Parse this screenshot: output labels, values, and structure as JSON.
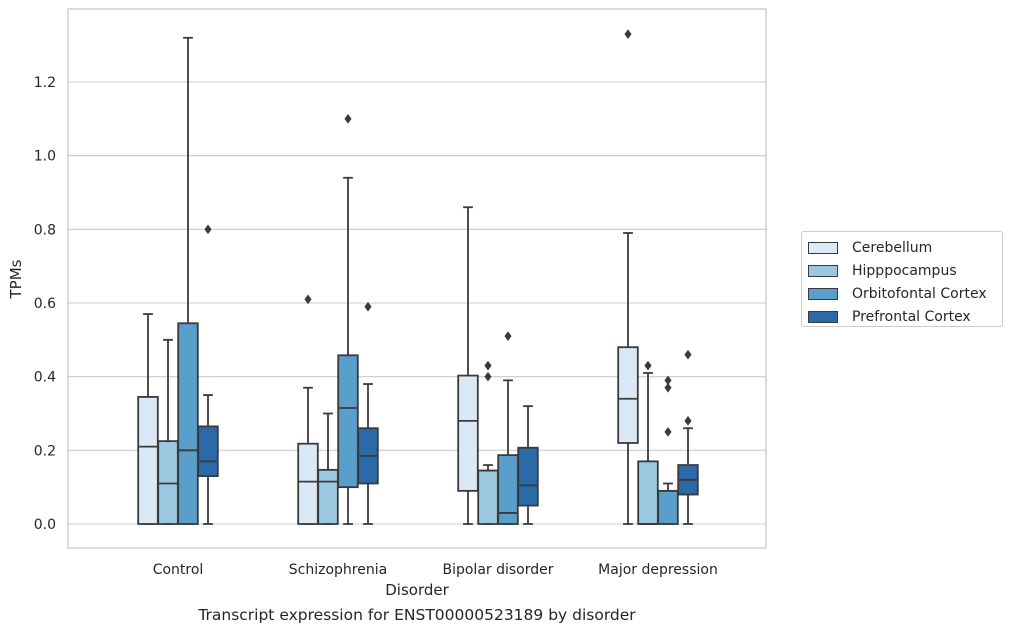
{
  "chart_data": {
    "type": "box",
    "caption": "Transcript expression for ENST00000523189 by disorder",
    "xlabel": "Disorder",
    "ylabel": "TPMs",
    "ylim": [
      -0.065,
      1.4
    ],
    "yticks": [
      0.0,
      0.2,
      0.4,
      0.6,
      0.8,
      1.0,
      1.2
    ],
    "ytick_labels": [
      "0.0",
      "0.2",
      "0.4",
      "0.6",
      "0.8",
      "1.0",
      "1.2"
    ],
    "grid": "horizontal",
    "legend_position": "right",
    "categories": [
      "Control",
      "Schizophrenia",
      "Bipolar disorder",
      "Major depression"
    ],
    "series": [
      {
        "name": "Cerebellum",
        "color": "#dbe9f6",
        "boxes": [
          {
            "whislo": 0.0,
            "q1": 0.0,
            "med": 0.21,
            "q3": 0.345,
            "whishi": 0.57,
            "fliers": []
          },
          {
            "whislo": 0.0,
            "q1": 0.0,
            "med": 0.115,
            "q3": 0.218,
            "whishi": 0.37,
            "fliers": [
              0.61
            ]
          },
          {
            "whislo": 0.0,
            "q1": 0.09,
            "med": 0.28,
            "q3": 0.403,
            "whishi": 0.86,
            "fliers": []
          },
          {
            "whislo": 0.0,
            "q1": 0.22,
            "med": 0.34,
            "q3": 0.48,
            "whishi": 0.79,
            "fliers": [
              1.33
            ]
          }
        ]
      },
      {
        "name": "Hipppocampus",
        "color": "#9ac8e0",
        "boxes": [
          {
            "whislo": 0.0,
            "q1": 0.0,
            "med": 0.11,
            "q3": 0.225,
            "whishi": 0.5,
            "fliers": []
          },
          {
            "whislo": 0.0,
            "q1": 0.0,
            "med": 0.115,
            "q3": 0.147,
            "whishi": 0.3,
            "fliers": []
          },
          {
            "whislo": 0.0,
            "q1": 0.0,
            "med": 0.145,
            "q3": 0.145,
            "whishi": 0.16,
            "fliers": [
              0.4,
              0.43
            ]
          },
          {
            "whislo": 0.0,
            "q1": 0.0,
            "med": 0.0,
            "q3": 0.17,
            "whishi": 0.41,
            "fliers": [
              0.43
            ]
          }
        ]
      },
      {
        "name": "Orbitofontal Cortex",
        "color": "#5a9ecc",
        "boxes": [
          {
            "whislo": 0.0,
            "q1": 0.0,
            "med": 0.2,
            "q3": 0.545,
            "whishi": 1.32,
            "fliers": []
          },
          {
            "whislo": 0.0,
            "q1": 0.1,
            "med": 0.315,
            "q3": 0.458,
            "whishi": 0.94,
            "fliers": [
              1.1
            ]
          },
          {
            "whislo": 0.0,
            "q1": 0.0,
            "med": 0.03,
            "q3": 0.187,
            "whishi": 0.39,
            "fliers": [
              0.51
            ]
          },
          {
            "whislo": 0.0,
            "q1": 0.0,
            "med": 0.09,
            "q3": 0.09,
            "whishi": 0.11,
            "fliers": [
              0.25,
              0.37,
              0.39
            ]
          }
        ]
      },
      {
        "name": "Prefrontal Cortex",
        "color": "#2a6aa9",
        "boxes": [
          {
            "whislo": 0.0,
            "q1": 0.13,
            "med": 0.17,
            "q3": 0.265,
            "whishi": 0.35,
            "fliers": [
              0.8
            ]
          },
          {
            "whislo": 0.0,
            "q1": 0.11,
            "med": 0.185,
            "q3": 0.26,
            "whishi": 0.38,
            "fliers": [
              0.59
            ]
          },
          {
            "whislo": 0.0,
            "q1": 0.05,
            "med": 0.105,
            "q3": 0.207,
            "whishi": 0.32,
            "fliers": []
          },
          {
            "whislo": 0.0,
            "q1": 0.08,
            "med": 0.12,
            "q3": 0.16,
            "whishi": 0.26,
            "fliers": [
              0.28,
              0.46
            ]
          }
        ]
      }
    ]
  }
}
